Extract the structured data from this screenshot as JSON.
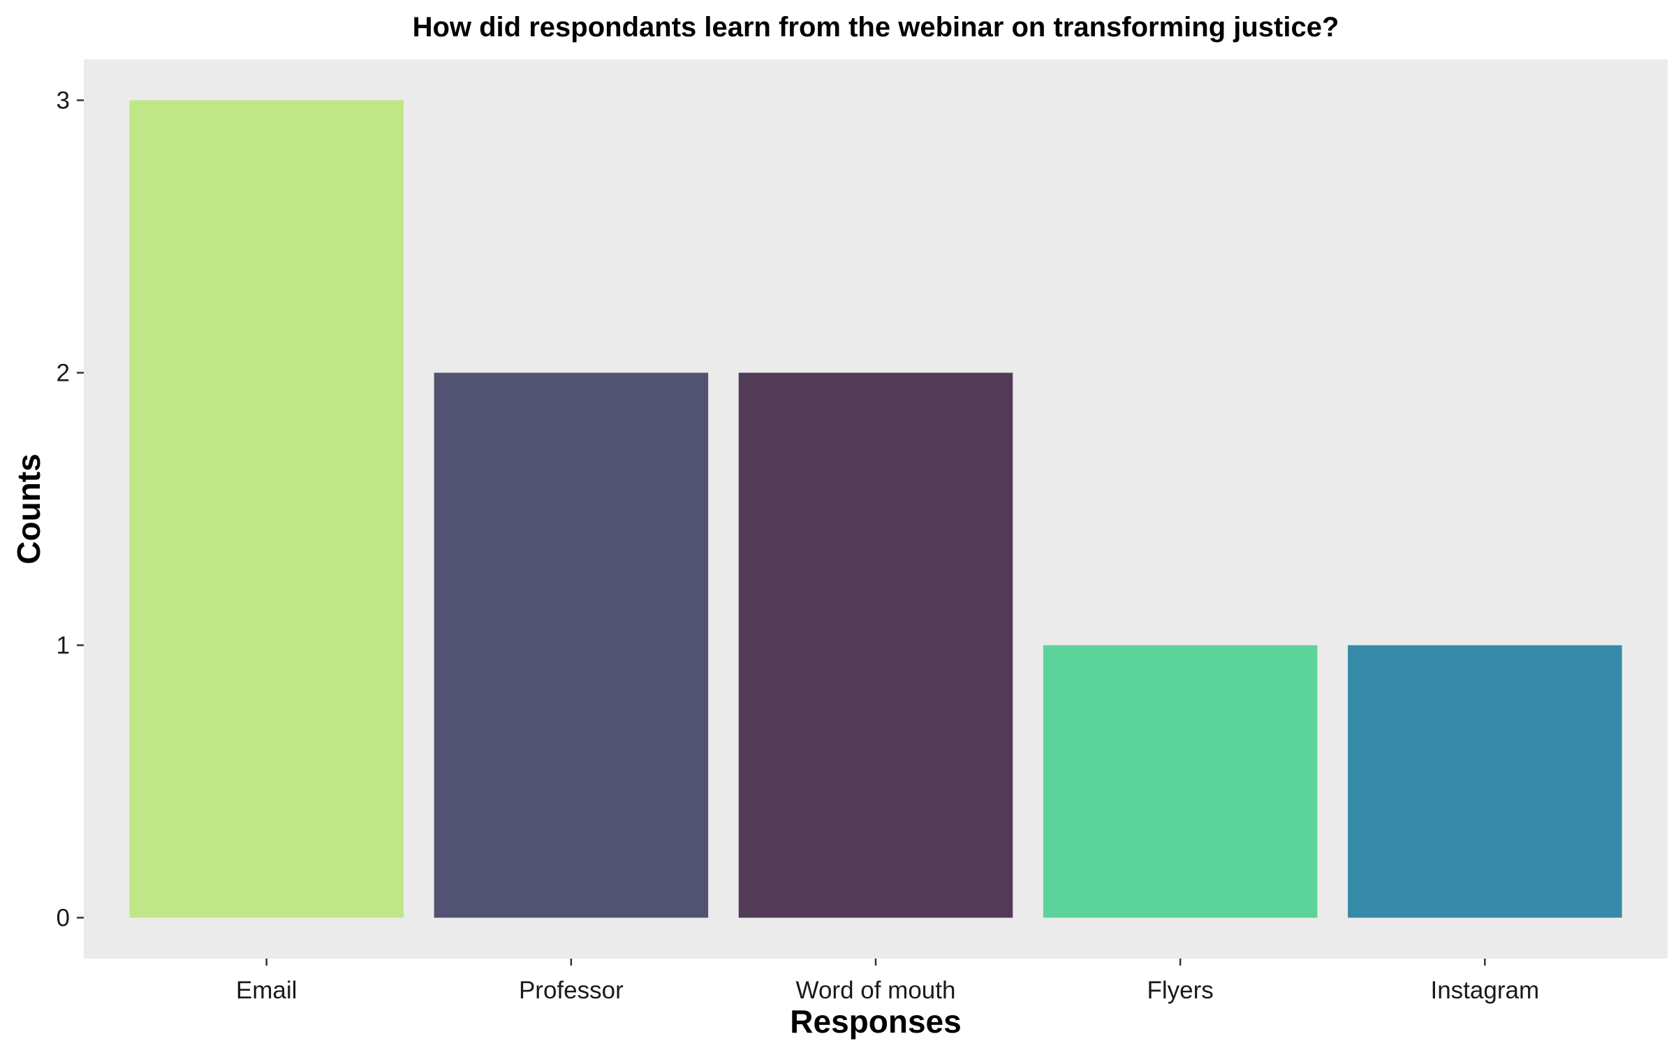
{
  "chart_data": {
    "type": "bar",
    "title": "How did respondants learn from the webinar on transforming justice?",
    "xlabel": "Responses",
    "ylabel": "Counts",
    "categories": [
      "Email",
      "Professor",
      "Word of mouth",
      "Flyers",
      "Instagram"
    ],
    "values": [
      3,
      2,
      2,
      1,
      1
    ],
    "colors": [
      "#c0e785",
      "#525273",
      "#523b57",
      "#5dd39c",
      "#368aa8"
    ],
    "ylim": [
      -0.15,
      3.15
    ],
    "yticks": [
      0,
      1,
      2,
      3
    ],
    "grid": false,
    "legend": "none",
    "panel_background": "#ebebeb"
  }
}
